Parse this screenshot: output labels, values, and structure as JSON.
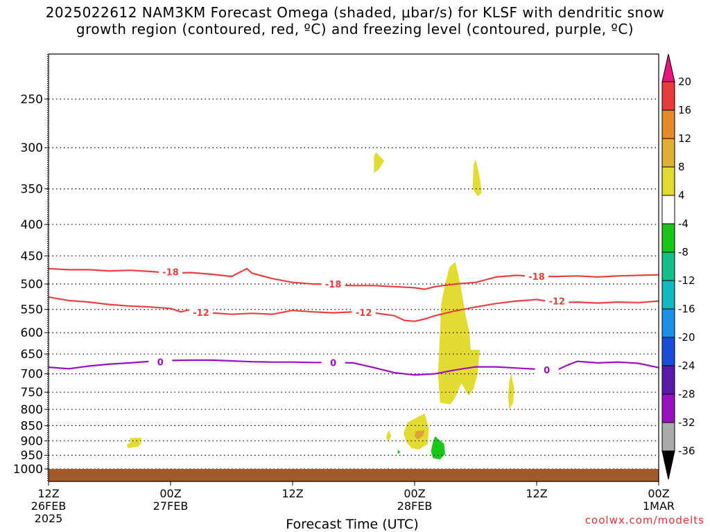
{
  "chart_data": {
    "type": "heatmap",
    "title_line1": "2025022612 NAM3KM Forecast Omega (shaded, μbar/s) for KLSF with dendritic snow",
    "title_line2": "growth region (contoured, red, ºC) and freezing level (contoured, purple, ºC)",
    "xlabel": "Forecast Time (UTC)",
    "credit": "coolwx.com/modelts",
    "x_range_hours": [
      0,
      60
    ],
    "y_axis": {
      "scale": "log-pressure",
      "range_hPa": [
        1000,
        210
      ],
      "tick_values": [
        250,
        300,
        350,
        400,
        450,
        500,
        550,
        600,
        650,
        700,
        750,
        800,
        850,
        900,
        950,
        1000
      ],
      "grid": "dotted"
    },
    "x_ticks": [
      {
        "hour": 0,
        "lines": [
          "12Z",
          "26FEB",
          "2025"
        ]
      },
      {
        "hour": 12,
        "lines": [
          "00Z",
          "27FEB"
        ]
      },
      {
        "hour": 24,
        "lines": [
          "12Z"
        ]
      },
      {
        "hour": 36,
        "lines": [
          "00Z",
          "28FEB"
        ]
      },
      {
        "hour": 48,
        "lines": [
          "12Z"
        ]
      },
      {
        "hour": 60,
        "lines": [
          "00Z",
          "1MAR"
        ]
      }
    ],
    "colorbar": {
      "labels": [
        "20",
        "16",
        "12",
        "8",
        "4",
        "-4",
        "-8",
        "-12",
        "-16",
        "-20",
        "-24",
        "-28",
        "-32",
        "-36"
      ],
      "colors_top_to_bottom": [
        "#e8167a",
        "#e83c3c",
        "#e88a28",
        "#e0b030",
        "#e2dc32",
        "#ffffff",
        "#18c818",
        "#12c08a",
        "#10b8c0",
        "#1a90e8",
        "#1a4ed8",
        "#5a1aa8",
        "#9a10c0",
        "#aaaaaa",
        "#000000"
      ]
    },
    "series": [
      {
        "name": "-18",
        "color": "#e84040",
        "x": [
          0,
          2,
          4,
          6,
          8,
          10,
          12,
          14,
          16,
          18,
          19.5,
          20,
          22,
          24,
          26,
          27,
          28,
          30,
          32,
          34,
          36,
          37,
          38,
          40,
          42,
          44,
          46,
          48,
          50,
          52,
          54,
          56,
          58,
          60
        ],
        "y": [
          472,
          474,
          474,
          476,
          475,
          477,
          480,
          479,
          482,
          486,
          472,
          480,
          490,
          497,
          500,
          500,
          502,
          503,
          503,
          505,
          507,
          510,
          505,
          500,
          497,
          487,
          484,
          486,
          486,
          485,
          487,
          485,
          484,
          483
        ]
      },
      {
        "name": "-12",
        "color": "#e84040",
        "x": [
          0,
          2,
          4,
          6,
          8,
          10,
          12,
          13,
          14,
          16,
          18,
          20,
          22,
          24,
          26,
          28,
          30,
          32,
          34,
          35,
          36,
          37,
          38,
          40,
          42,
          44,
          46,
          48,
          50,
          52,
          54,
          56,
          58,
          60
        ],
        "y": [
          525,
          532,
          535,
          540,
          543,
          545,
          548,
          555,
          550,
          557,
          560,
          558,
          560,
          552,
          555,
          557,
          555,
          557,
          563,
          573,
          575,
          570,
          563,
          553,
          545,
          538,
          533,
          530,
          536,
          535,
          537,
          535,
          536,
          533
        ]
      },
      {
        "name": "0",
        "color": "#9a10c0",
        "x": [
          0,
          2,
          4,
          6,
          8,
          10,
          12,
          14,
          16,
          18,
          20,
          22,
          24,
          26,
          28,
          30,
          32,
          34,
          36,
          38,
          40,
          42,
          44,
          46,
          48,
          50,
          51,
          52,
          54,
          56,
          58,
          60
        ],
        "y": [
          683,
          687,
          680,
          675,
          672,
          668,
          666,
          665,
          665,
          667,
          669,
          670,
          670,
          671,
          671,
          672,
          684,
          697,
          703,
          700,
          690,
          682,
          682,
          685,
          688,
          690,
          678,
          668,
          672,
          670,
          673,
          684
        ]
      }
    ],
    "contour_labels": [
      {
        "text": "-18",
        "hour": 12,
        "p": 478
      },
      {
        "text": "-18",
        "hour": 28,
        "p": 500
      },
      {
        "text": "-18",
        "hour": 48,
        "p": 486
      },
      {
        "text": "-12",
        "hour": 15,
        "p": 556
      },
      {
        "text": "-12",
        "hour": 31,
        "p": 556
      },
      {
        "text": "-12",
        "hour": 50,
        "p": 533
      },
      {
        "text": "0",
        "hour": 11,
        "p": 670
      },
      {
        "text": "0",
        "hour": 28,
        "p": 671
      },
      {
        "text": "0",
        "hour": 49,
        "p": 690
      }
    ],
    "omega_regions": [
      {
        "color": "#e2dc32",
        "pts": [
          [
            32.2,
            305
          ],
          [
            33,
            315
          ],
          [
            32.5,
            325
          ],
          [
            32,
            330
          ],
          [
            32,
            310
          ]
        ]
      },
      {
        "color": "#e2dc32",
        "pts": [
          [
            42.0,
            313
          ],
          [
            42.4,
            335
          ],
          [
            42.6,
            355
          ],
          [
            42.2,
            360
          ],
          [
            41.7,
            350
          ],
          [
            41.8,
            320
          ]
        ]
      },
      {
        "color": "#e2dc32",
        "pts": [
          [
            40.0,
            460
          ],
          [
            40.5,
            500
          ],
          [
            41.0,
            560
          ],
          [
            41.4,
            600
          ],
          [
            41.5,
            640
          ],
          [
            42.4,
            640
          ],
          [
            42.3,
            670
          ],
          [
            42.2,
            700
          ],
          [
            41.8,
            740
          ],
          [
            41.3,
            760
          ],
          [
            40.6,
            725
          ],
          [
            39.9,
            770
          ],
          [
            39.5,
            785
          ],
          [
            38.5,
            780
          ],
          [
            38.3,
            700
          ],
          [
            38.5,
            600
          ],
          [
            38.6,
            540
          ],
          [
            39.0,
            500
          ],
          [
            39.4,
            470
          ]
        ]
      },
      {
        "color": "#e2dc32",
        "pts": [
          [
            45.5,
            700
          ],
          [
            45.8,
            740
          ],
          [
            45.7,
            780
          ],
          [
            45.3,
            800
          ],
          [
            45.2,
            760
          ],
          [
            45.3,
            720
          ]
        ]
      },
      {
        "color": "#e2dc32",
        "pts": [
          [
            37.0,
            812
          ],
          [
            37.4,
            860
          ],
          [
            37.3,
            910
          ],
          [
            36.4,
            930
          ],
          [
            35.7,
            925
          ],
          [
            35.2,
            905
          ],
          [
            34.9,
            875
          ],
          [
            35.3,
            840
          ],
          [
            36.2,
            825
          ]
        ]
      },
      {
        "color": "#e2dc32",
        "pts": [
          [
            33.5,
            865
          ],
          [
            33.7,
            885
          ],
          [
            33.4,
            900
          ],
          [
            33.2,
            890
          ],
          [
            33.3,
            875
          ]
        ]
      },
      {
        "color": "#e2dc32",
        "pts": [
          [
            8.0,
            890
          ],
          [
            9.2,
            890
          ],
          [
            9.0,
            905
          ],
          [
            9.2,
            905
          ],
          [
            8.8,
            920
          ],
          [
            7.8,
            925
          ],
          [
            7.7,
            912
          ],
          [
            8.1,
            905
          ]
        ]
      },
      {
        "color": "#e0a038",
        "pts": [
          [
            36.1,
            868
          ],
          [
            37.0,
            865
          ],
          [
            36.8,
            885
          ],
          [
            36.3,
            895
          ],
          [
            36.0,
            885
          ]
        ]
      },
      {
        "color": "#18c818",
        "pts": [
          [
            38.0,
            885
          ],
          [
            38.9,
            910
          ],
          [
            39.0,
            945
          ],
          [
            38.5,
            965
          ],
          [
            37.8,
            960
          ],
          [
            37.6,
            935
          ],
          [
            37.8,
            905
          ]
        ]
      },
      {
        "color": "#18c818",
        "pts": [
          [
            34.4,
            930
          ],
          [
            34.6,
            940
          ],
          [
            34.3,
            945
          ]
        ]
      }
    ],
    "ground_color": "#a05a2c"
  }
}
